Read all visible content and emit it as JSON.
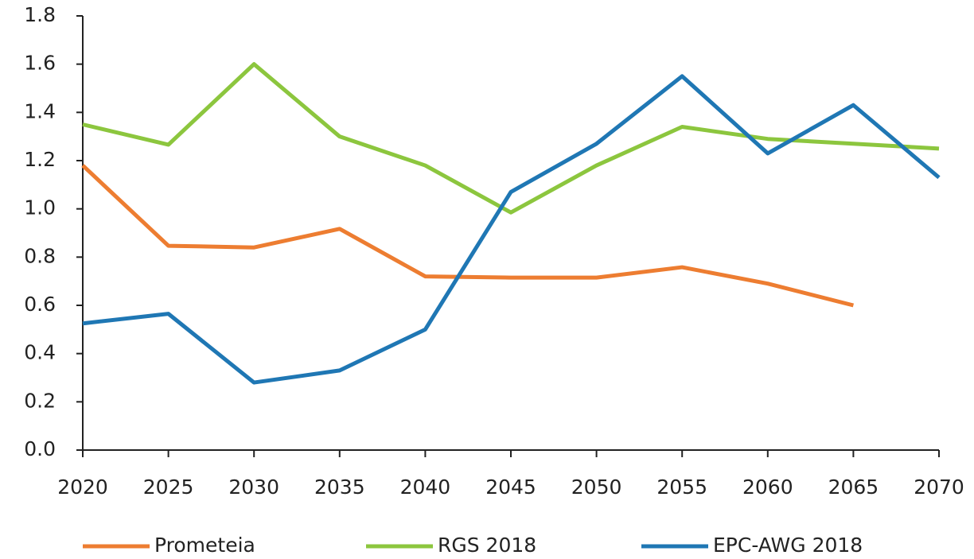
{
  "chart_data": {
    "type": "line",
    "x": [
      2020,
      2025,
      2030,
      2035,
      2040,
      2045,
      2050,
      2055,
      2060,
      2065,
      2070
    ],
    "xlim": [
      2020,
      2070
    ],
    "xticks": [
      2020,
      2025,
      2030,
      2035,
      2040,
      2045,
      2050,
      2055,
      2060,
      2065,
      2070
    ],
    "ylim": [
      0,
      1.8
    ],
    "yticks": [
      {
        "value": 0,
        "label": "0.0"
      },
      0.2,
      0.4,
      0.6,
      0.8,
      {
        "value": 1,
        "label": "1.0"
      },
      1.2,
      1.4,
      1.6,
      1.8
    ],
    "grid": false,
    "legend": "bottom",
    "series": [
      {
        "name": "Prometeia",
        "color": "#ed7d31",
        "values": [
          1.18,
          0.847,
          0.84,
          0.917,
          0.72,
          0.715,
          0.715,
          0.758,
          0.69,
          0.6,
          null
        ]
      },
      {
        "name": "RGS 2018",
        "color": "#8cc63e",
        "values": [
          1.35,
          1.266,
          1.6,
          1.3,
          1.18,
          0.985,
          1.18,
          1.34,
          1.29,
          1.27,
          1.25
        ]
      },
      {
        "name": "EPC-AWG 2018",
        "color": "#1f77b4",
        "values": [
          0.525,
          0.565,
          0.28,
          0.33,
          0.5,
          1.07,
          1.27,
          1.55,
          1.23,
          1.43,
          1.13
        ]
      }
    ]
  }
}
